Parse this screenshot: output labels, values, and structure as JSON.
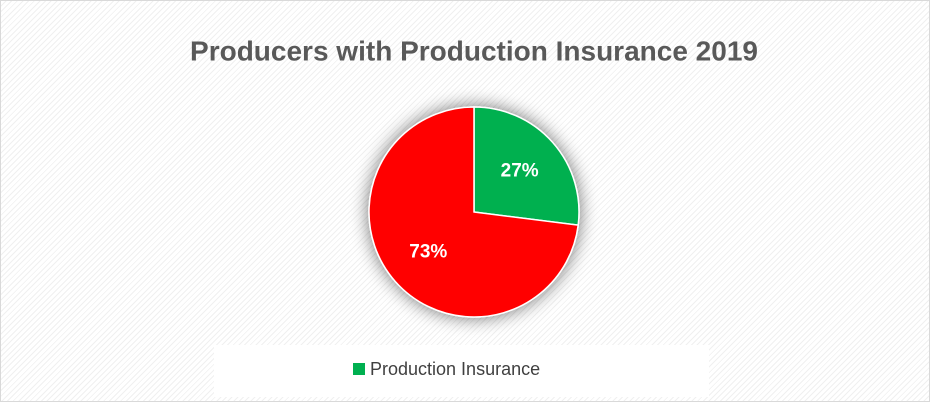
{
  "chart_data": {
    "type": "pie",
    "title": "Producers with Production Insurance 2019",
    "categories": [
      "Production Insurance",
      null
    ],
    "values": [
      27,
      73
    ],
    "value_labels": [
      "27%",
      "73%"
    ],
    "colors": [
      "#00b050",
      "#ff0000"
    ],
    "legend": "bottom"
  }
}
